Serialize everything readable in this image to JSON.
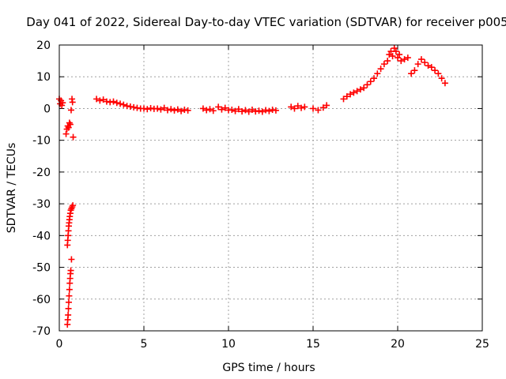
{
  "chart_data": {
    "type": "scatter",
    "title": "Day 041 of 2022, Sidereal Day-to-day VTEC variation (SDTVAR) for receiver p005",
    "xlabel": "GPS time / hours",
    "ylabel": "SDTVAR / TECUs",
    "xlim": [
      0,
      25
    ],
    "ylim": [
      -70,
      20
    ],
    "xticks": [
      0,
      5,
      10,
      15,
      20,
      25
    ],
    "yticks": [
      -70,
      -60,
      -50,
      -40,
      -30,
      -20,
      -10,
      0,
      10,
      20
    ],
    "xtick_labels": [
      "0",
      "5",
      "10",
      "15",
      "20",
      "25"
    ],
    "ytick_labels": [
      "-70",
      "-60",
      "-50",
      "-40",
      "-30",
      "-20",
      "-10",
      "0",
      "10",
      "20"
    ],
    "grid": true,
    "legend": "none",
    "marker": "+",
    "series": [
      {
        "name": "SDTVAR",
        "color": "#ff0000",
        "points": [
          [
            0.0,
            3.0
          ],
          [
            0.05,
            1.5
          ],
          [
            0.1,
            2.5
          ],
          [
            0.15,
            1.0
          ],
          [
            0.2,
            1.8
          ],
          [
            0.4,
            -8.0
          ],
          [
            0.45,
            -6.5
          ],
          [
            0.5,
            -5.5
          ],
          [
            0.55,
            -6.0
          ],
          [
            0.6,
            -4.5
          ],
          [
            0.65,
            -5.0
          ],
          [
            0.7,
            -0.5
          ],
          [
            0.75,
            3.0
          ],
          [
            0.78,
            2.0
          ],
          [
            0.82,
            -9.0
          ],
          [
            0.48,
            -68.0
          ],
          [
            0.5,
            -66.5
          ],
          [
            0.52,
            -65.0
          ],
          [
            0.54,
            -63.0
          ],
          [
            0.56,
            -61.0
          ],
          [
            0.58,
            -59.0
          ],
          [
            0.6,
            -57.0
          ],
          [
            0.62,
            -55.0
          ],
          [
            0.64,
            -53.5
          ],
          [
            0.66,
            -52.0
          ],
          [
            0.68,
            -51.0
          ],
          [
            0.72,
            -47.5
          ],
          [
            0.48,
            -43.0
          ],
          [
            0.5,
            -41.5
          ],
          [
            0.52,
            -40.0
          ],
          [
            0.54,
            -38.5
          ],
          [
            0.56,
            -37.0
          ],
          [
            0.58,
            -36.0
          ],
          [
            0.6,
            -35.0
          ],
          [
            0.62,
            -34.0
          ],
          [
            0.65,
            -33.0
          ],
          [
            0.68,
            -32.0
          ],
          [
            0.72,
            -31.5
          ],
          [
            0.76,
            -31.0
          ],
          [
            0.8,
            -30.5
          ],
          [
            2.2,
            3.0
          ],
          [
            2.4,
            2.5
          ],
          [
            2.6,
            2.8
          ],
          [
            2.8,
            2.2
          ],
          [
            3.0,
            2.0
          ],
          [
            3.2,
            2.2
          ],
          [
            3.4,
            1.8
          ],
          [
            3.6,
            1.5
          ],
          [
            3.8,
            1.2
          ],
          [
            4.0,
            0.8
          ],
          [
            4.2,
            0.6
          ],
          [
            4.4,
            0.4
          ],
          [
            4.6,
            0.2
          ],
          [
            4.8,
            0.0
          ],
          [
            5.0,
            0.0
          ],
          [
            5.2,
            -0.2
          ],
          [
            5.4,
            0.1
          ],
          [
            5.6,
            -0.1
          ],
          [
            5.8,
            0.0
          ],
          [
            6.0,
            -0.3
          ],
          [
            6.2,
            0.2
          ],
          [
            6.4,
            -0.5
          ],
          [
            6.6,
            -0.2
          ],
          [
            6.8,
            -0.6
          ],
          [
            7.0,
            -0.3
          ],
          [
            7.2,
            -0.8
          ],
          [
            7.4,
            -0.4
          ],
          [
            7.6,
            -0.6
          ],
          [
            8.5,
            0.0
          ],
          [
            8.7,
            -0.5
          ],
          [
            8.9,
            -0.2
          ],
          [
            9.1,
            -0.7
          ],
          [
            9.4,
            0.5
          ],
          [
            9.6,
            -0.3
          ],
          [
            9.8,
            0.2
          ],
          [
            10.0,
            -0.5
          ],
          [
            10.2,
            -0.4
          ],
          [
            10.4,
            -0.8
          ],
          [
            10.6,
            -0.2
          ],
          [
            10.8,
            -0.9
          ],
          [
            11.0,
            -0.5
          ],
          [
            11.2,
            -1.0
          ],
          [
            11.4,
            -0.4
          ],
          [
            11.6,
            -0.9
          ],
          [
            11.8,
            -0.7
          ],
          [
            12.0,
            -1.0
          ],
          [
            12.2,
            -0.5
          ],
          [
            12.4,
            -0.8
          ],
          [
            12.6,
            -0.4
          ],
          [
            12.8,
            -0.6
          ],
          [
            13.7,
            0.5
          ],
          [
            13.9,
            0.0
          ],
          [
            14.1,
            0.8
          ],
          [
            14.3,
            0.2
          ],
          [
            14.5,
            0.5
          ],
          [
            15.0,
            0.0
          ],
          [
            15.3,
            -0.5
          ],
          [
            15.6,
            0.3
          ],
          [
            15.8,
            1.0
          ],
          [
            16.8,
            3.0
          ],
          [
            17.0,
            3.8
          ],
          [
            17.2,
            4.5
          ],
          [
            17.4,
            5.0
          ],
          [
            17.6,
            5.5
          ],
          [
            17.8,
            6.0
          ],
          [
            18.0,
            6.5
          ],
          [
            18.2,
            7.5
          ],
          [
            18.4,
            8.5
          ],
          [
            18.6,
            9.5
          ],
          [
            18.8,
            11.0
          ],
          [
            19.0,
            12.5
          ],
          [
            19.2,
            14.0
          ],
          [
            19.4,
            15.0
          ],
          [
            19.5,
            17.0
          ],
          [
            19.6,
            18.0
          ],
          [
            19.7,
            16.5
          ],
          [
            19.8,
            19.0
          ],
          [
            19.9,
            18.0
          ],
          [
            20.0,
            16.0
          ],
          [
            20.1,
            17.0
          ],
          [
            20.2,
            15.0
          ],
          [
            20.4,
            15.5
          ],
          [
            20.6,
            16.0
          ],
          [
            20.8,
            11.0
          ],
          [
            21.0,
            12.0
          ],
          [
            21.2,
            14.0
          ],
          [
            21.4,
            15.5
          ],
          [
            21.6,
            14.5
          ],
          [
            21.8,
            13.5
          ],
          [
            22.0,
            13.0
          ],
          [
            22.2,
            12.0
          ],
          [
            22.4,
            11.0
          ],
          [
            22.6,
            9.5
          ],
          [
            22.8,
            8.0
          ]
        ]
      }
    ]
  }
}
